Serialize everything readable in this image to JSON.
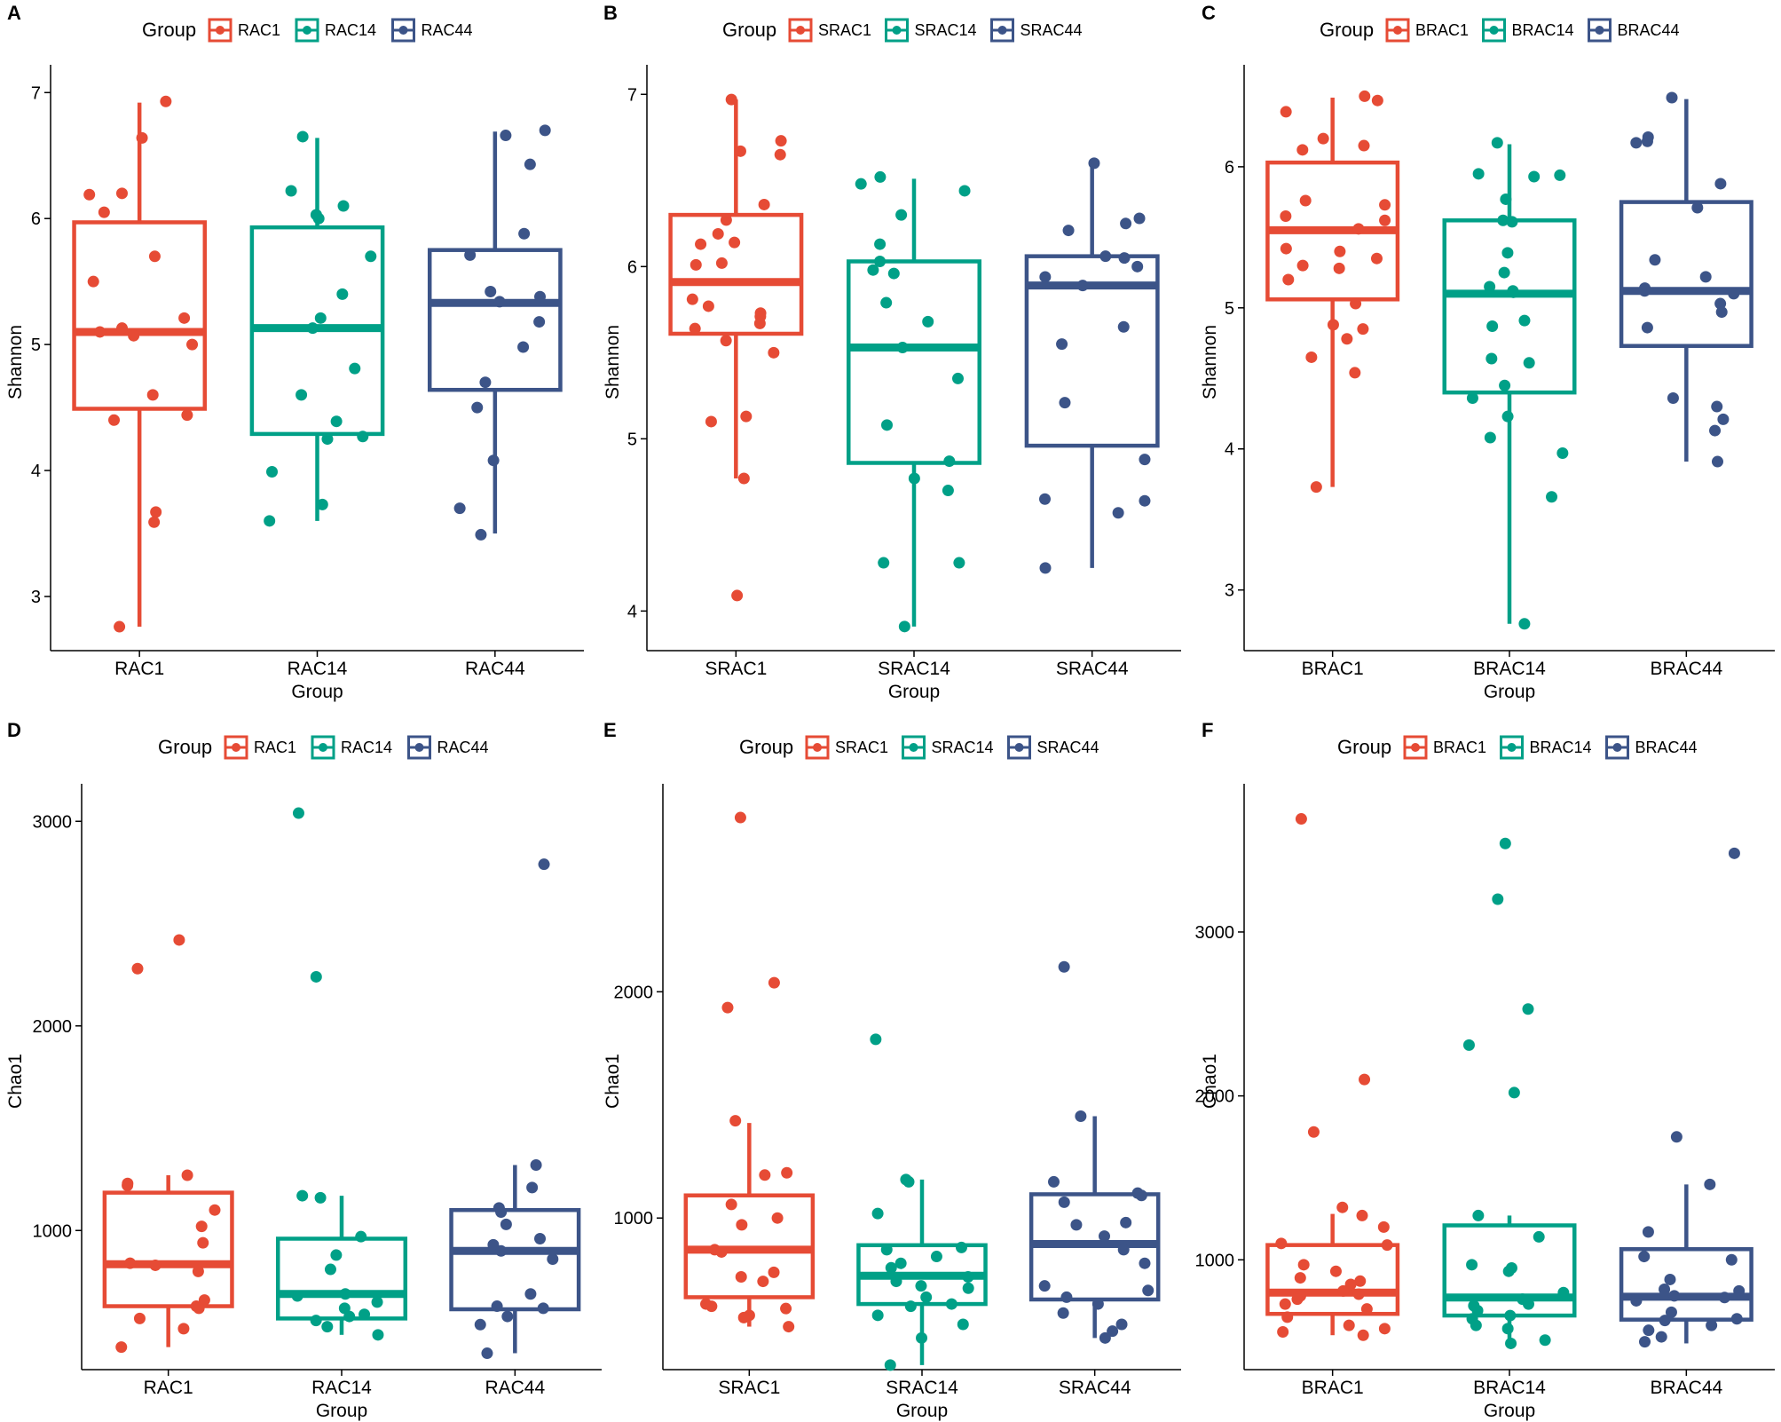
{
  "colors": {
    "c1": "#E64B35",
    "c14": "#00A087",
    "c44": "#3C5488"
  },
  "chart_data": [
    {
      "panel": "A",
      "type": "box",
      "legend_title": "Group",
      "categories": [
        "RAC1",
        "RAC14",
        "RAC44"
      ],
      "xlabel": "Group",
      "ylabel": "Shannon",
      "ylim": [
        2.57,
        7.15
      ],
      "yticks": [
        3,
        4,
        5,
        6,
        7
      ],
      "box_stats": [
        {
          "whisker_low": 2.76,
          "q1": 4.49,
          "median": 5.1,
          "q3": 5.97,
          "whisker_high": 6.92
        },
        {
          "whisker_low": 3.6,
          "q1": 4.29,
          "median": 5.13,
          "q3": 5.93,
          "whisker_high": 6.64
        },
        {
          "whisker_low": 3.5,
          "q1": 4.64,
          "median": 5.33,
          "q3": 5.75,
          "whisker_high": 6.69
        }
      ],
      "points": [
        [
          6.93,
          6.64,
          6.2,
          6.19,
          6.05,
          5.7,
          5.5,
          5.21,
          5.13,
          5.1,
          5.07,
          5.0,
          4.6,
          4.44,
          4.4,
          3.67,
          3.59,
          2.76
        ],
        [
          6.65,
          6.22,
          6.1,
          6.03,
          6.0,
          5.7,
          5.4,
          5.21,
          5.13,
          4.81,
          4.6,
          4.39,
          4.27,
          4.25,
          3.99,
          3.73,
          3.6
        ],
        [
          6.7,
          6.66,
          6.43,
          5.88,
          5.71,
          5.42,
          5.38,
          5.34,
          5.18,
          4.98,
          4.7,
          4.5,
          4.08,
          3.7,
          3.49
        ]
      ]
    },
    {
      "panel": "B",
      "type": "box",
      "legend_title": "Group",
      "categories": [
        "SRAC1",
        "SRAC14",
        "SRAC44"
      ],
      "xlabel": "Group",
      "ylabel": "Shannon",
      "ylim": [
        3.77,
        7.12
      ],
      "yticks": [
        4,
        5,
        6,
        7
      ],
      "box_stats": [
        {
          "whisker_low": 4.77,
          "q1": 5.61,
          "median": 5.91,
          "q3": 6.3,
          "whisker_high": 6.97
        },
        {
          "whisker_low": 3.91,
          "q1": 4.86,
          "median": 5.53,
          "q3": 6.03,
          "whisker_high": 6.51
        },
        {
          "whisker_low": 4.25,
          "q1": 4.96,
          "median": 5.89,
          "q3": 6.06,
          "whisker_high": 6.6
        }
      ],
      "points": [
        [
          6.97,
          6.73,
          6.67,
          6.65,
          6.36,
          6.27,
          6.19,
          6.14,
          6.13,
          6.02,
          6.01,
          5.81,
          5.77,
          5.73,
          5.71,
          5.67,
          5.64,
          5.57,
          5.5,
          5.13,
          5.1,
          4.77,
          4.09
        ],
        [
          6.52,
          6.48,
          6.44,
          6.3,
          6.13,
          6.03,
          5.98,
          5.96,
          5.79,
          5.68,
          5.53,
          5.35,
          5.08,
          4.87,
          4.77,
          4.7,
          4.28,
          4.28,
          3.91
        ],
        [
          6.6,
          6.28,
          6.25,
          6.21,
          6.06,
          6.05,
          6.0,
          5.94,
          5.89,
          5.65,
          5.55,
          5.21,
          4.88,
          4.65,
          4.64,
          4.57,
          4.25
        ]
      ]
    },
    {
      "panel": "C",
      "type": "box",
      "legend_title": "Group",
      "categories": [
        "BRAC1",
        "BRAC14",
        "BRAC44"
      ],
      "xlabel": "Group",
      "ylabel": "Shannon",
      "ylim": [
        2.57,
        6.66
      ],
      "yticks": [
        3,
        4,
        5,
        6
      ],
      "box_stats": [
        {
          "whisker_low": 3.73,
          "q1": 5.06,
          "median": 5.55,
          "q3": 6.03,
          "whisker_high": 6.49
        },
        {
          "whisker_low": 2.76,
          "q1": 4.4,
          "median": 5.1,
          "q3": 5.62,
          "whisker_high": 6.16
        },
        {
          "whisker_low": 3.91,
          "q1": 4.73,
          "median": 5.12,
          "q3": 5.75,
          "whisker_high": 6.48
        }
      ],
      "points": [
        [
          6.5,
          6.47,
          6.39,
          6.2,
          6.15,
          6.12,
          5.76,
          5.73,
          5.65,
          5.62,
          5.56,
          5.42,
          5.4,
          5.35,
          5.3,
          5.28,
          5.2,
          5.03,
          4.88,
          4.85,
          4.78,
          4.65,
          4.54,
          3.73
        ],
        [
          6.17,
          5.95,
          5.94,
          5.93,
          5.77,
          5.62,
          5.61,
          5.39,
          5.25,
          5.15,
          5.12,
          5.11,
          4.91,
          4.87,
          4.64,
          4.61,
          4.45,
          4.36,
          4.23,
          4.08,
          3.97,
          3.66,
          2.76
        ],
        [
          6.49,
          6.21,
          6.18,
          6.17,
          5.88,
          5.71,
          5.34,
          5.22,
          5.14,
          5.12,
          5.1,
          5.03,
          4.97,
          4.86,
          4.36,
          4.3,
          4.21,
          4.13,
          3.91
        ]
      ]
    },
    {
      "panel": "D",
      "type": "box",
      "legend_title": "Group",
      "categories": [
        "RAC1",
        "RAC14",
        "RAC44"
      ],
      "xlabel": "Group",
      "ylabel": "Chao1",
      "ylim": [
        320,
        3140
      ],
      "yticks": [
        1000,
        2000,
        3000
      ],
      "box_stats": [
        {
          "whisker_low": 430,
          "q1": 630,
          "median": 835,
          "q3": 1185,
          "whisker_high": 1270
        },
        {
          "whisker_low": 490,
          "q1": 570,
          "median": 690,
          "q3": 960,
          "whisker_high": 1170
        },
        {
          "whisker_low": 400,
          "q1": 615,
          "median": 900,
          "q3": 1100,
          "whisker_high": 1320
        }
      ],
      "points": [
        [
          2420,
          2280,
          1270,
          1230,
          1220,
          1100,
          1020,
          940,
          840,
          830,
          800,
          660,
          630,
          620,
          570,
          520,
          430
        ],
        [
          3040,
          2240,
          1170,
          1160,
          970,
          880,
          810,
          690,
          680,
          650,
          620,
          590,
          580,
          560,
          530,
          490
        ],
        [
          2790,
          1320,
          1210,
          1110,
          1090,
          1030,
          960,
          930,
          900,
          860,
          690,
          630,
          620,
          580,
          540,
          400
        ]
      ]
    },
    {
      "panel": "E",
      "type": "box",
      "legend_title": "Group",
      "categories": [
        "SRAC1",
        "SRAC14",
        "SRAC44"
      ],
      "xlabel": "Group",
      "ylabel": "Chao1",
      "ylim": [
        330,
        2880
      ],
      "yticks": [
        1000,
        2000
      ],
      "box_stats": [
        {
          "whisker_low": 520,
          "q1": 650,
          "median": 860,
          "q3": 1100,
          "whisker_high": 1420
        },
        {
          "whisker_low": 350,
          "q1": 620,
          "median": 745,
          "q3": 880,
          "whisker_high": 1170
        },
        {
          "whisker_low": 470,
          "q1": 640,
          "median": 885,
          "q3": 1105,
          "whisker_high": 1450
        }
      ],
      "points": [
        [
          2770,
          2040,
          1930,
          1430,
          1200,
          1190,
          1060,
          1000,
          970,
          860,
          850,
          760,
          740,
          720,
          620,
          610,
          600,
          570,
          560,
          520
        ],
        [
          1790,
          1170,
          1160,
          1020,
          870,
          860,
          830,
          800,
          780,
          740,
          720,
          700,
          690,
          650,
          620,
          610,
          570,
          530,
          470,
          350
        ],
        [
          2110,
          1450,
          1160,
          1110,
          1100,
          1070,
          980,
          970,
          920,
          860,
          800,
          700,
          680,
          650,
          620,
          580,
          530,
          500,
          470
        ]
      ]
    },
    {
      "panel": "F",
      "type": "box",
      "legend_title": "Group",
      "categories": [
        "BRAC1",
        "BRAC14",
        "BRAC44"
      ],
      "xlabel": "Group",
      "ylabel": "Chao1",
      "ylim": [
        330,
        3850
      ],
      "yticks": [
        1000,
        2000,
        3000
      ],
      "box_stats": [
        {
          "whisker_low": 540,
          "q1": 670,
          "median": 800,
          "q3": 1090,
          "whisker_high": 1280
        },
        {
          "whisker_low": 490,
          "q1": 660,
          "median": 770,
          "q3": 1210,
          "whisker_high": 1270
        },
        {
          "whisker_low": 490,
          "q1": 635,
          "median": 775,
          "q3": 1065,
          "whisker_high": 1460
        }
      ],
      "points": [
        [
          3690,
          2100,
          1780,
          1320,
          1270,
          1200,
          1100,
          1090,
          970,
          930,
          890,
          870,
          850,
          810,
          790,
          780,
          760,
          730,
          700,
          650,
          600,
          580,
          560,
          540
        ],
        [
          3540,
          3200,
          2530,
          2310,
          2020,
          1270,
          1140,
          970,
          950,
          930,
          800,
          760,
          730,
          720,
          690,
          660,
          640,
          600,
          580,
          510,
          490
        ],
        [
          3480,
          1750,
          1460,
          1170,
          1020,
          1000,
          880,
          820,
          810,
          780,
          770,
          750,
          680,
          640,
          630,
          600,
          570,
          530,
          500
        ]
      ]
    }
  ]
}
